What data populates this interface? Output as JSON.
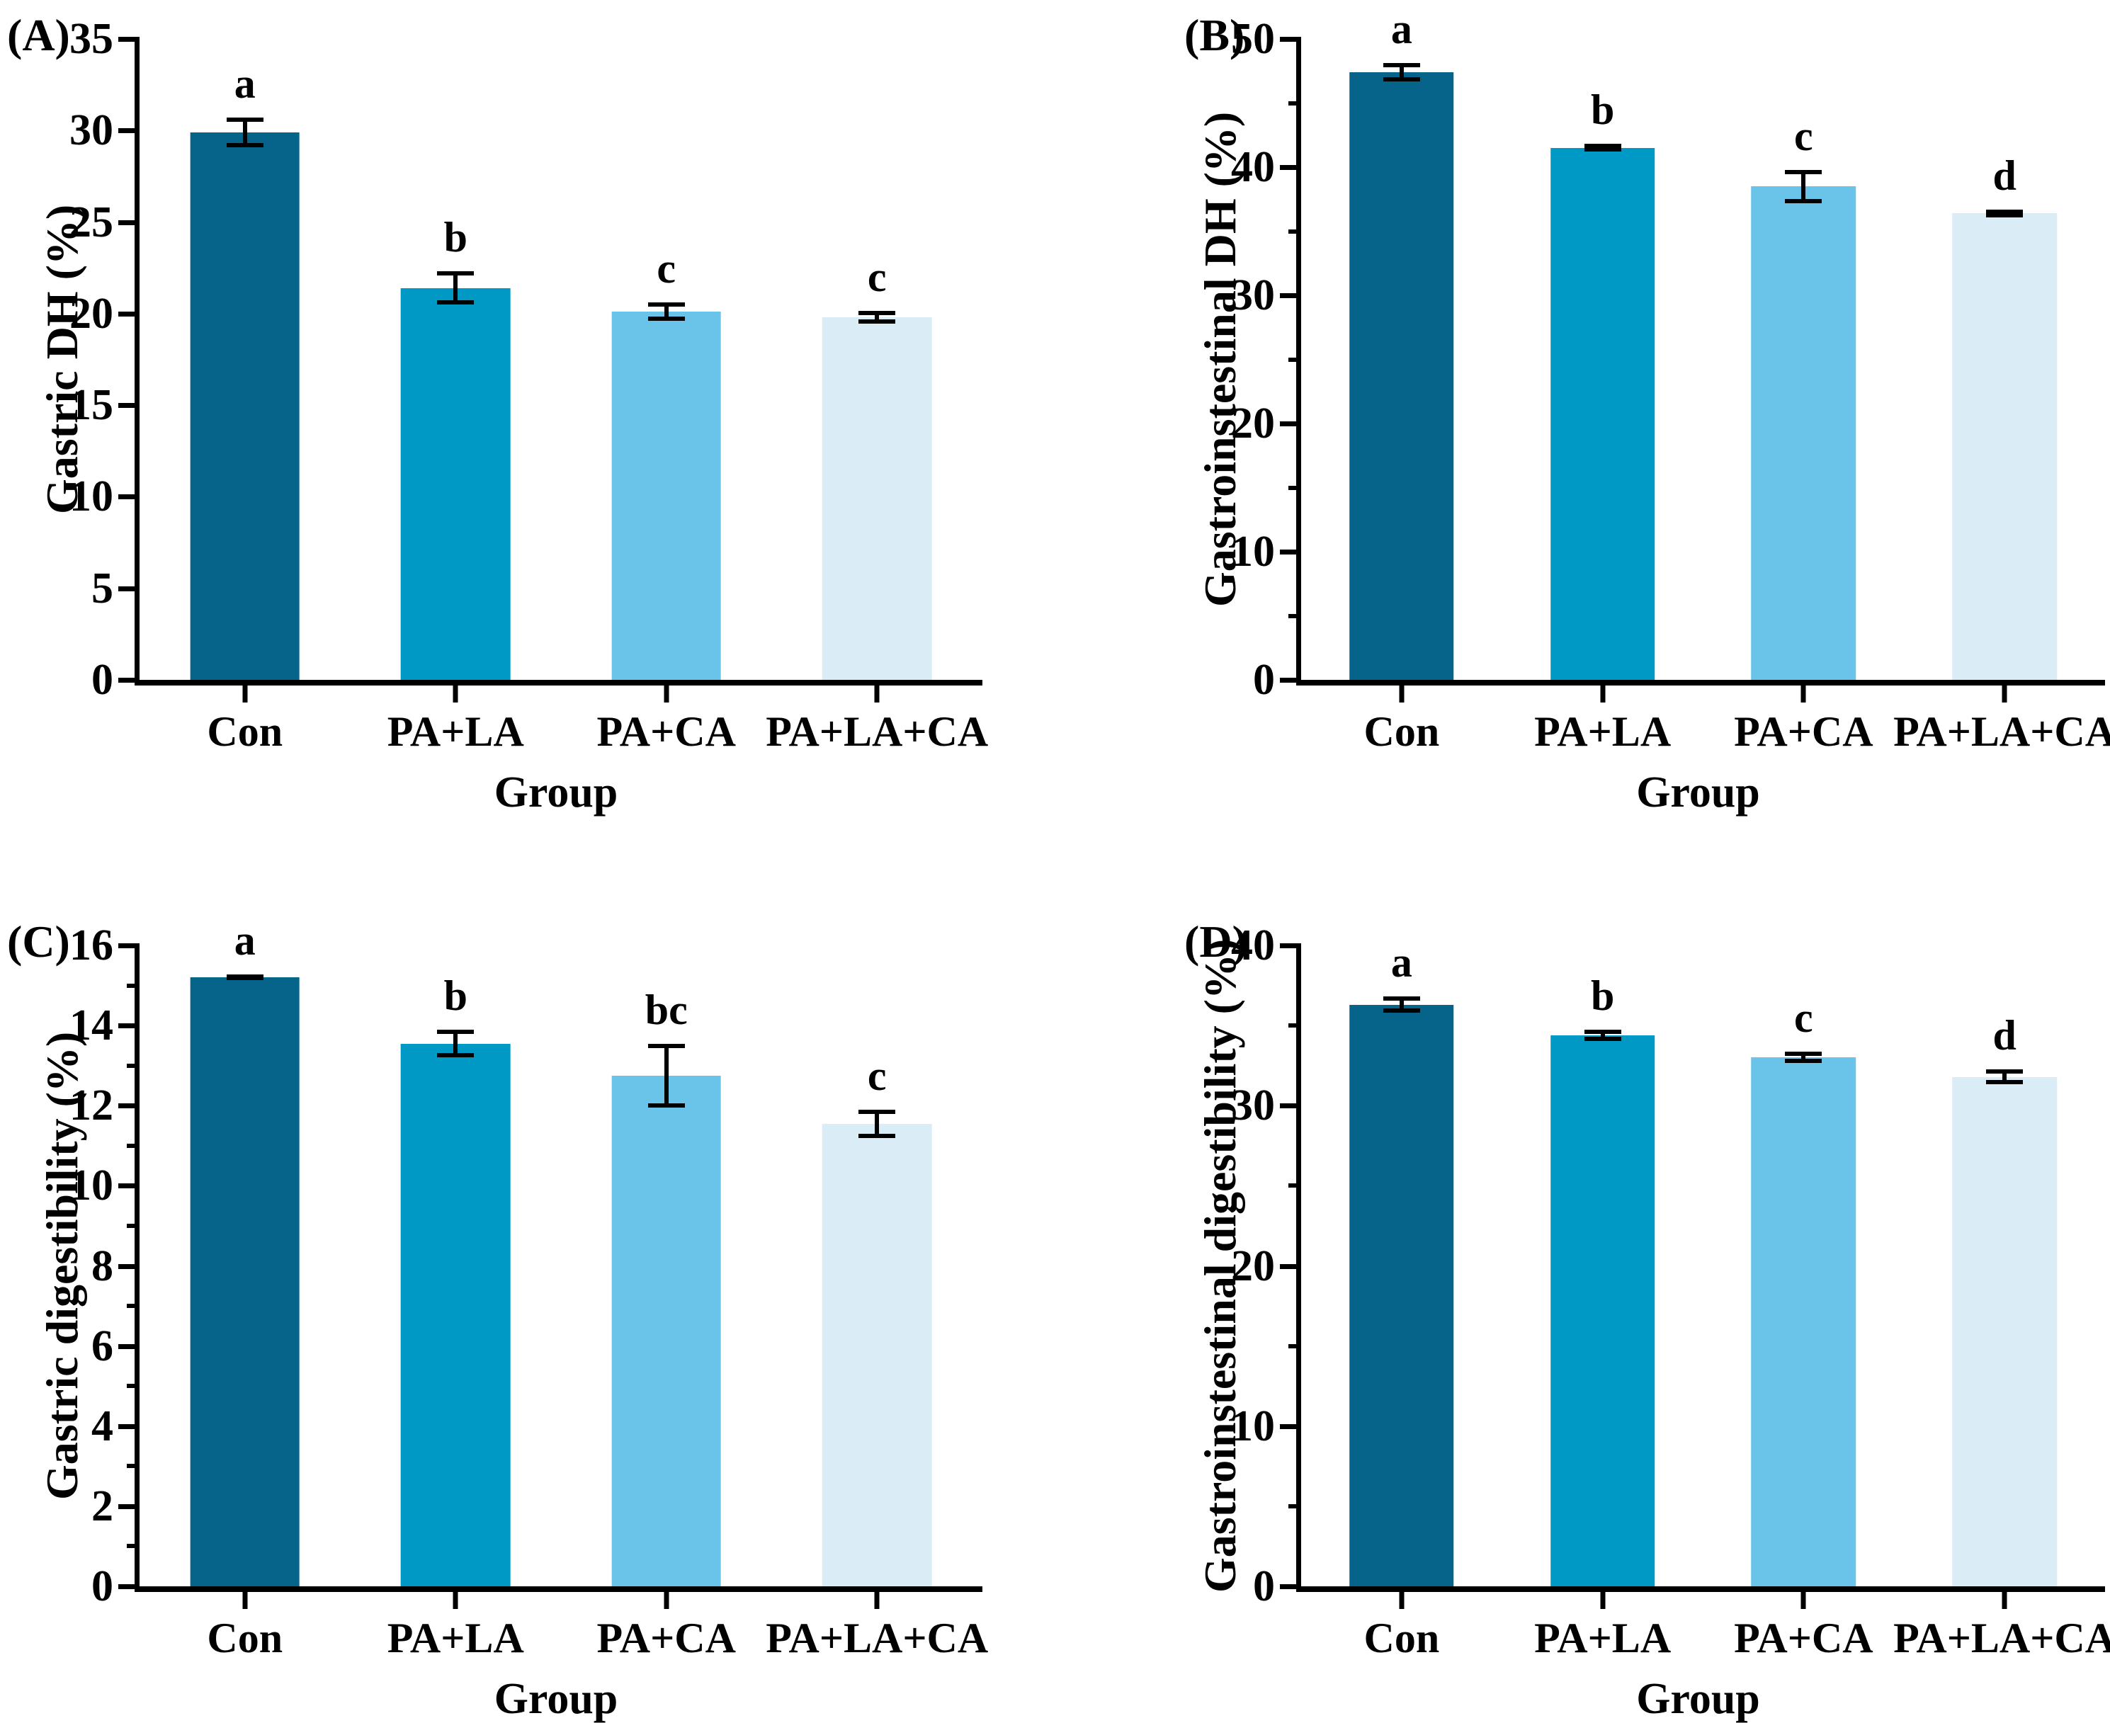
{
  "style": {
    "background": "#ffffff",
    "axis_color": "#000000",
    "bar_colors": [
      "#066389",
      "#0099c6",
      "#6ac4e9",
      "#daecf5"
    ]
  },
  "chart_data": [
    {
      "type": "bar",
      "panel_label": "(A)",
      "ylabel": "Gastric DH (%)",
      "xlabel": "Group",
      "categories": [
        "Con",
        "PA+LA",
        "PA+CA",
        "PA+LA+CA"
      ],
      "values": [
        29.9,
        21.4,
        20.1,
        19.8
      ],
      "errors": [
        0.8,
        0.9,
        0.5,
        0.35
      ],
      "sig_letters": [
        "a",
        "b",
        "c",
        "c"
      ],
      "ylim": [
        0,
        35
      ],
      "yticks": [
        0,
        5,
        10,
        15,
        20,
        25,
        30,
        35
      ],
      "yminor_step": null,
      "grid": false,
      "legend": false
    },
    {
      "type": "bar",
      "panel_label": "(B)",
      "ylabel": "Gastroinstestinal DH (%)",
      "xlabel": "Group",
      "categories": [
        "Con",
        "PA+LA",
        "PA+CA",
        "PA+LA+CA"
      ],
      "values": [
        47.4,
        41.5,
        38.5,
        36.4
      ],
      "errors": [
        0.7,
        0.3,
        1.3,
        0.3
      ],
      "sig_letters": [
        "a",
        "b",
        "c",
        "d"
      ],
      "ylim": [
        0,
        50
      ],
      "yticks": [
        0,
        10,
        20,
        30,
        40,
        50
      ],
      "yminor_step": 5,
      "grid": false,
      "legend": false
    },
    {
      "type": "bar",
      "panel_label": "(C)",
      "ylabel": "Gastric digestibility (%)",
      "xlabel": "Group",
      "categories": [
        "Con",
        "PA+LA",
        "PA+CA",
        "PA+LA+CA"
      ],
      "values": [
        15.2,
        13.55,
        12.75,
        11.55
      ],
      "errors": [
        0.07,
        0.35,
        0.8,
        0.35
      ],
      "sig_letters": [
        "a",
        "b",
        "bc",
        "c"
      ],
      "ylim": [
        0,
        16
      ],
      "yticks": [
        0,
        2,
        4,
        6,
        8,
        10,
        12,
        14,
        16
      ],
      "yminor_step": 1,
      "grid": false,
      "legend": false
    },
    {
      "type": "bar",
      "panel_label": "(D)",
      "ylabel": "Gastroinstestinal digestibility (%)",
      "xlabel": "Group",
      "categories": [
        "Con",
        "PA+LA",
        "PA+CA",
        "PA+LA+CA"
      ],
      "values": [
        36.3,
        34.4,
        33.0,
        31.8
      ],
      "errors": [
        0.5,
        0.35,
        0.35,
        0.45
      ],
      "sig_letters": [
        "a",
        "b",
        "c",
        "d"
      ],
      "ylim": [
        0,
        40
      ],
      "yticks": [
        0,
        10,
        20,
        30,
        40
      ],
      "yminor_step": 5,
      "grid": false,
      "legend": false
    }
  ]
}
